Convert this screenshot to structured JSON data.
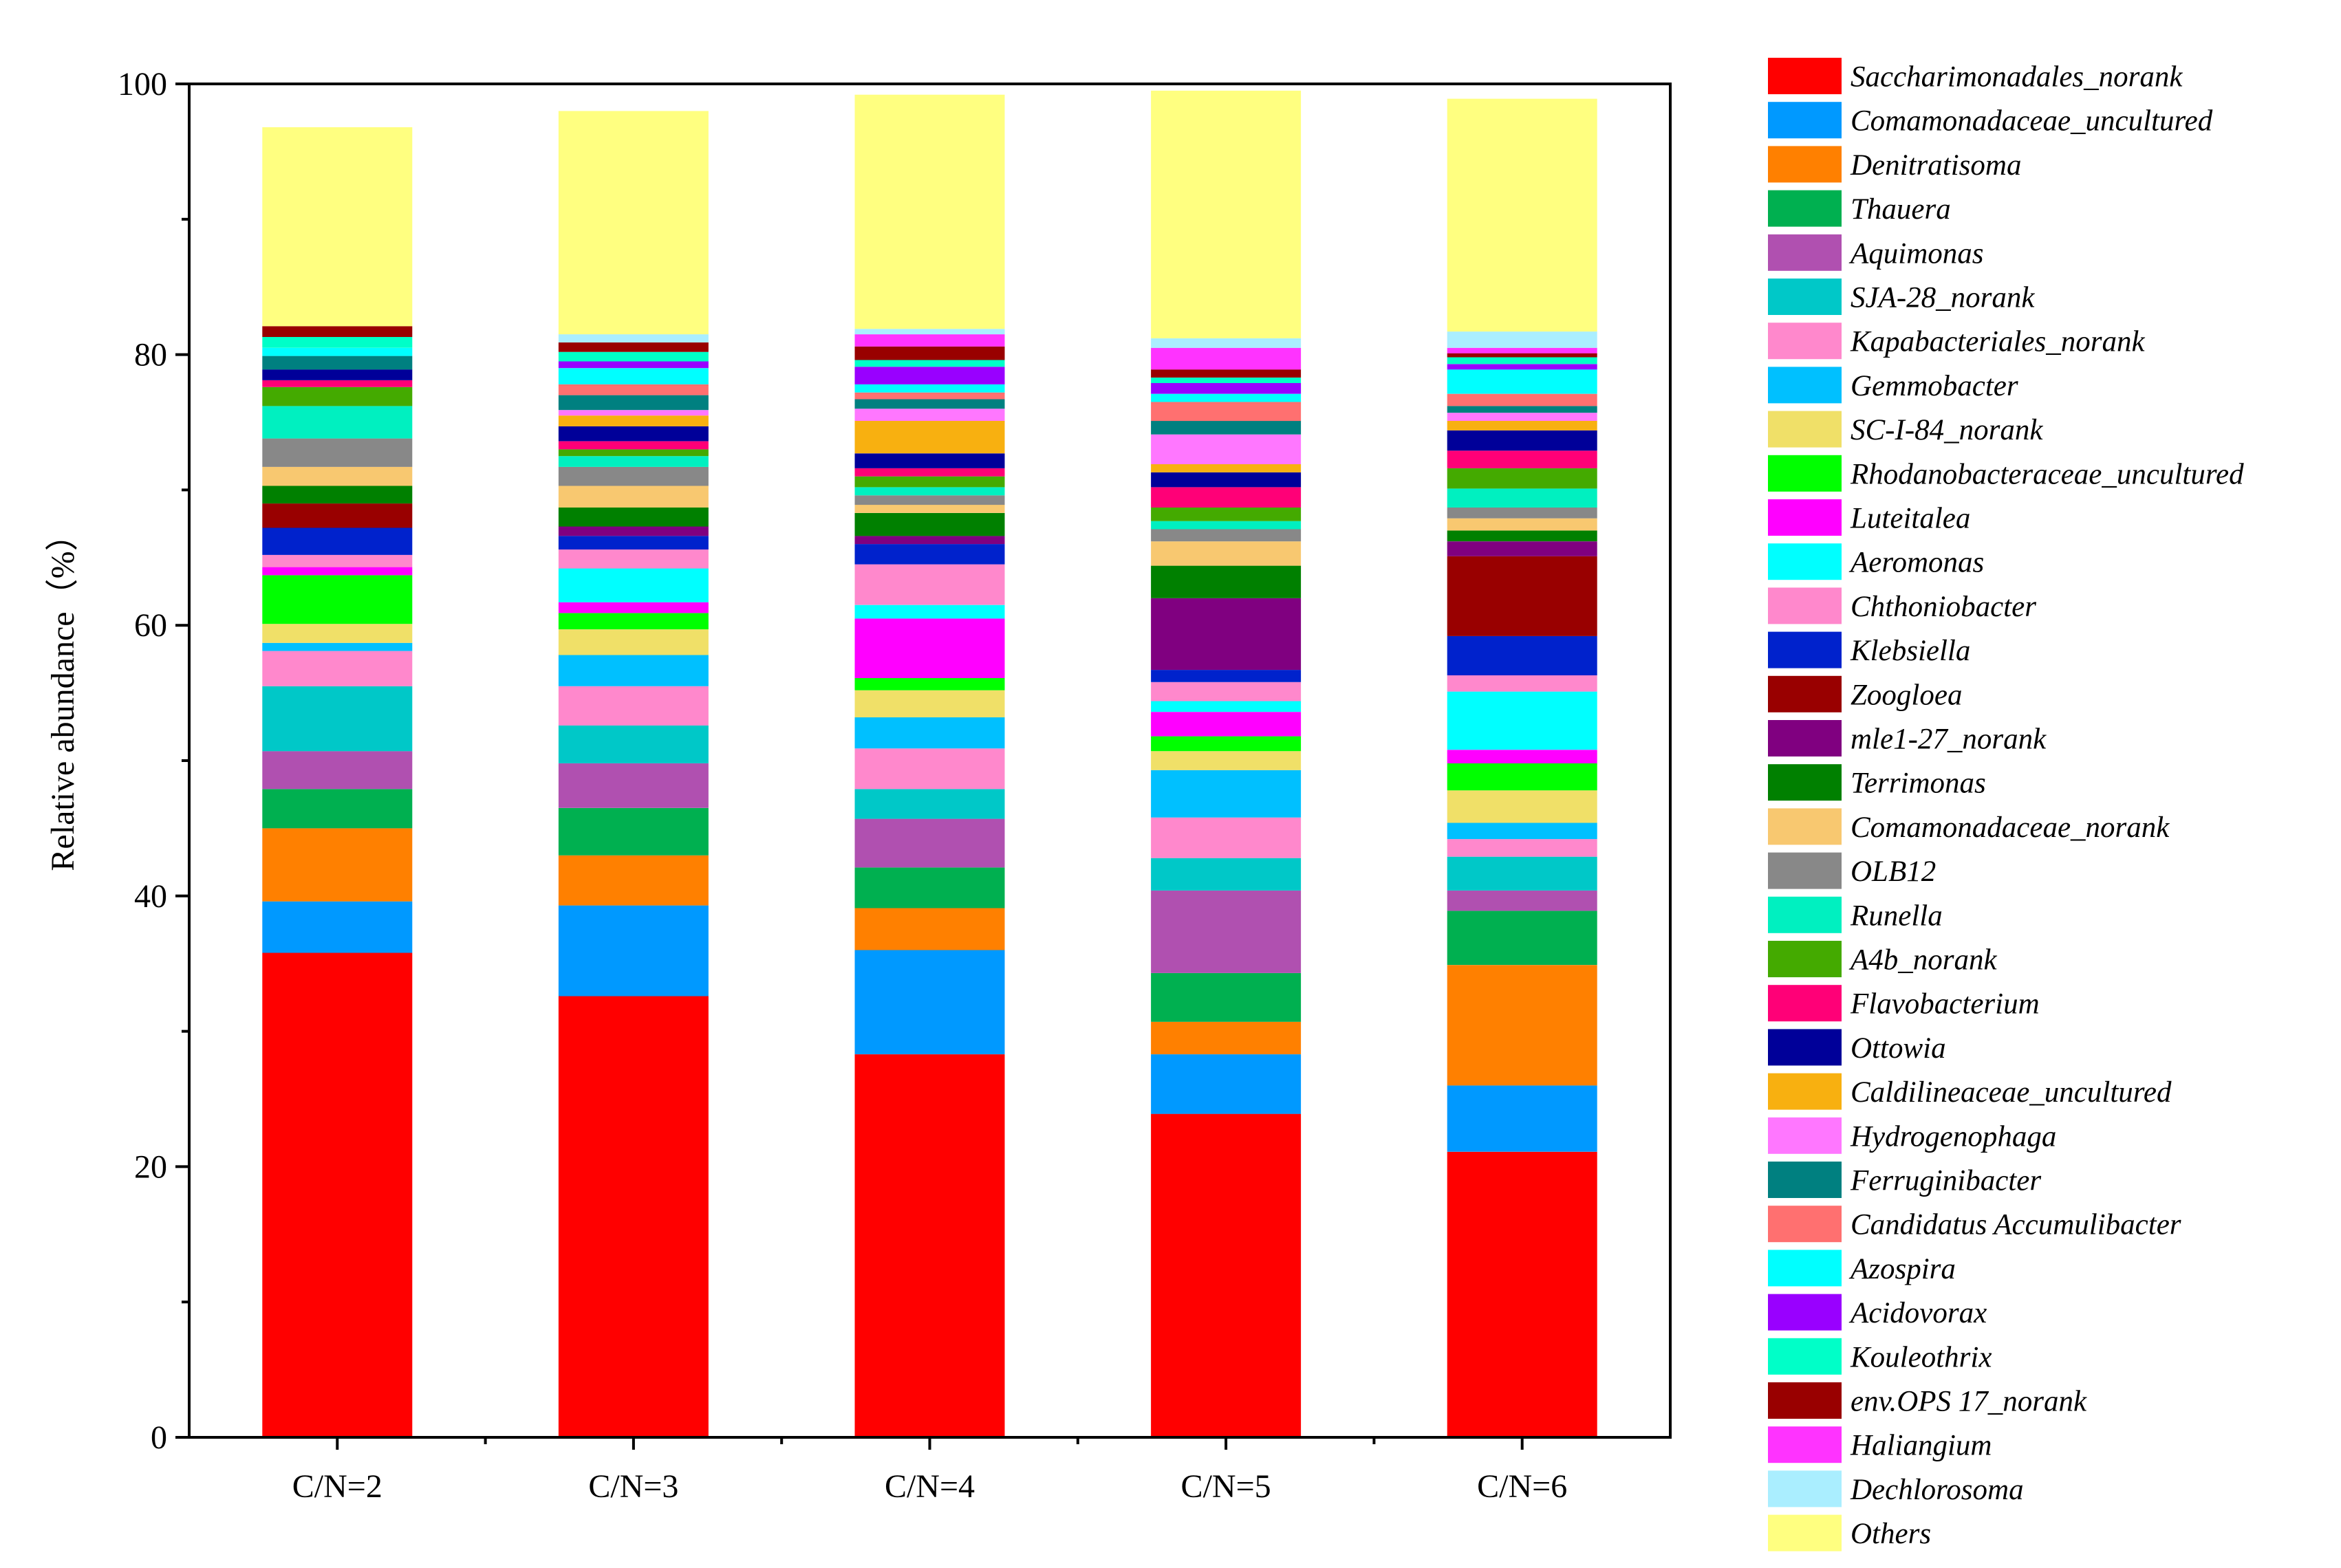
{
  "chart_data": {
    "type": "bar",
    "stacked": true,
    "title": "",
    "xlabel": "",
    "ylabel": "Relative abundance（%）",
    "ylim": [
      0,
      100
    ],
    "yticks": [
      0,
      20,
      40,
      60,
      80,
      100
    ],
    "categories": [
      "C/N=2",
      "C/N=3",
      "C/N=4",
      "C/N=5",
      "C/N=6"
    ],
    "legend_position": "right",
    "series": [
      {
        "name": "Saccharimonadales_norank",
        "color": "#ff0000",
        "values": [
          35.8,
          32.6,
          28.3,
          23.9,
          21.1
        ]
      },
      {
        "name": "Comamonadaceae_uncultured",
        "color": "#0099ff",
        "values": [
          3.8,
          6.7,
          7.7,
          4.4,
          4.9
        ]
      },
      {
        "name": "Denitratisoma",
        "color": "#ff8000",
        "values": [
          5.4,
          3.7,
          3.1,
          2.4,
          8.9
        ]
      },
      {
        "name": "Thauera",
        "color": "#00b050",
        "values": [
          2.9,
          3.5,
          3.0,
          3.6,
          4.0
        ]
      },
      {
        "name": "Aquimonas",
        "color": "#b050b0",
        "values": [
          2.8,
          3.3,
          3.6,
          6.1,
          1.5
        ]
      },
      {
        "name": "SJA-28_norank",
        "color": "#00c8c8",
        "values": [
          4.8,
          2.8,
          2.2,
          2.4,
          2.5
        ]
      },
      {
        "name": "Kapabacteriales_norank",
        "color": "#ff88cc",
        "values": [
          2.6,
          2.9,
          3.0,
          3.0,
          1.3
        ]
      },
      {
        "name": "Gemmobacter",
        "color": "#00c0ff",
        "values": [
          0.6,
          2.3,
          2.3,
          3.5,
          1.2
        ]
      },
      {
        "name": "SC-I-84_norank",
        "color": "#f0e068",
        "values": [
          1.4,
          1.9,
          2.0,
          1.4,
          2.4
        ]
      },
      {
        "name": "Rhodanobacteraceae_uncultured",
        "color": "#00ff00",
        "values": [
          3.6,
          1.2,
          0.9,
          1.1,
          2.0
        ]
      },
      {
        "name": "Luteitalea",
        "color": "#ff00ff",
        "values": [
          0.6,
          0.8,
          4.4,
          1.8,
          1.0
        ]
      },
      {
        "name": "Aeromonas",
        "color": "#00ffff",
        "values": [
          0.0,
          2.5,
          1.0,
          0.8,
          4.3
        ]
      },
      {
        "name": "Chthoniobacter",
        "color": "#ff88cc",
        "values": [
          0.9,
          1.4,
          3.0,
          1.4,
          1.2
        ]
      },
      {
        "name": "Klebsiella",
        "color": "#0022cc",
        "values": [
          2.0,
          1.0,
          1.5,
          0.9,
          2.9
        ]
      },
      {
        "name": "Zoogloea",
        "color": "#990000",
        "values": [
          1.8,
          0.0,
          0.0,
          0.0,
          5.9
        ]
      },
      {
        "name": "mle1-27_norank",
        "color": "#800080",
        "values": [
          0.0,
          0.7,
          0.6,
          5.3,
          1.1
        ]
      },
      {
        "name": "Terrimonas",
        "color": "#008000",
        "values": [
          1.3,
          1.4,
          1.7,
          2.4,
          0.8
        ]
      },
      {
        "name": "Comamonadaceae_norank",
        "color": "#f8c870",
        "values": [
          1.4,
          1.6,
          0.6,
          1.8,
          0.9
        ]
      },
      {
        "name": "OLB12",
        "color": "#888888",
        "values": [
          2.1,
          1.4,
          0.7,
          0.9,
          0.8
        ]
      },
      {
        "name": "Runella",
        "color": "#00f0c0",
        "values": [
          2.4,
          0.8,
          0.6,
          0.6,
          1.4
        ]
      },
      {
        "name": "A4b_norank",
        "color": "#44aa00",
        "values": [
          1.4,
          0.5,
          0.8,
          1.0,
          1.5
        ]
      },
      {
        "name": "Flavobacterium",
        "color": "#ff0077",
        "values": [
          0.5,
          0.6,
          0.6,
          1.5,
          1.3
        ]
      },
      {
        "name": "Ottowia",
        "color": "#000099",
        "values": [
          0.8,
          1.1,
          1.1,
          1.1,
          1.5
        ]
      },
      {
        "name": "Caldilineaceae_uncultured",
        "color": "#f8b010",
        "values": [
          0.0,
          0.8,
          2.4,
          0.6,
          0.7
        ]
      },
      {
        "name": "Hydrogenophaga",
        "color": "#ff77ff",
        "values": [
          0.0,
          0.4,
          0.9,
          2.2,
          0.6
        ]
      },
      {
        "name": "Ferruginibacter",
        "color": "#008080",
        "values": [
          1.0,
          1.1,
          0.7,
          1.0,
          0.5
        ]
      },
      {
        "name": "Candidatus Accumulibacter",
        "color": "#ff7070",
        "values": [
          0.0,
          0.8,
          0.5,
          1.4,
          0.9
        ]
      },
      {
        "name": "Azospira",
        "color": "#00ffff",
        "values": [
          0.6,
          1.2,
          0.6,
          0.6,
          1.8
        ]
      },
      {
        "name": "Acidovorax",
        "color": "#9900ff",
        "values": [
          0.0,
          0.5,
          1.3,
          0.8,
          0.4
        ]
      },
      {
        "name": "Kouleothrix",
        "color": "#00ffc8",
        "values": [
          0.8,
          0.7,
          0.5,
          0.4,
          0.5
        ]
      },
      {
        "name": "env.OPS 17_norank",
        "color": "#990000",
        "values": [
          0.8,
          0.7,
          1.0,
          0.6,
          0.3
        ]
      },
      {
        "name": "Haliangium",
        "color": "#ff33ff",
        "values": [
          0.0,
          0.0,
          0.9,
          1.6,
          0.4
        ]
      },
      {
        "name": "Dechlorosoma",
        "color": "#aaeeff",
        "values": [
          0.0,
          0.6,
          0.4,
          0.7,
          1.2
        ]
      },
      {
        "name": "Others",
        "color": "#ffff80",
        "values": [
          14.7,
          16.5,
          17.3,
          18.3,
          17.2
        ]
      }
    ]
  }
}
